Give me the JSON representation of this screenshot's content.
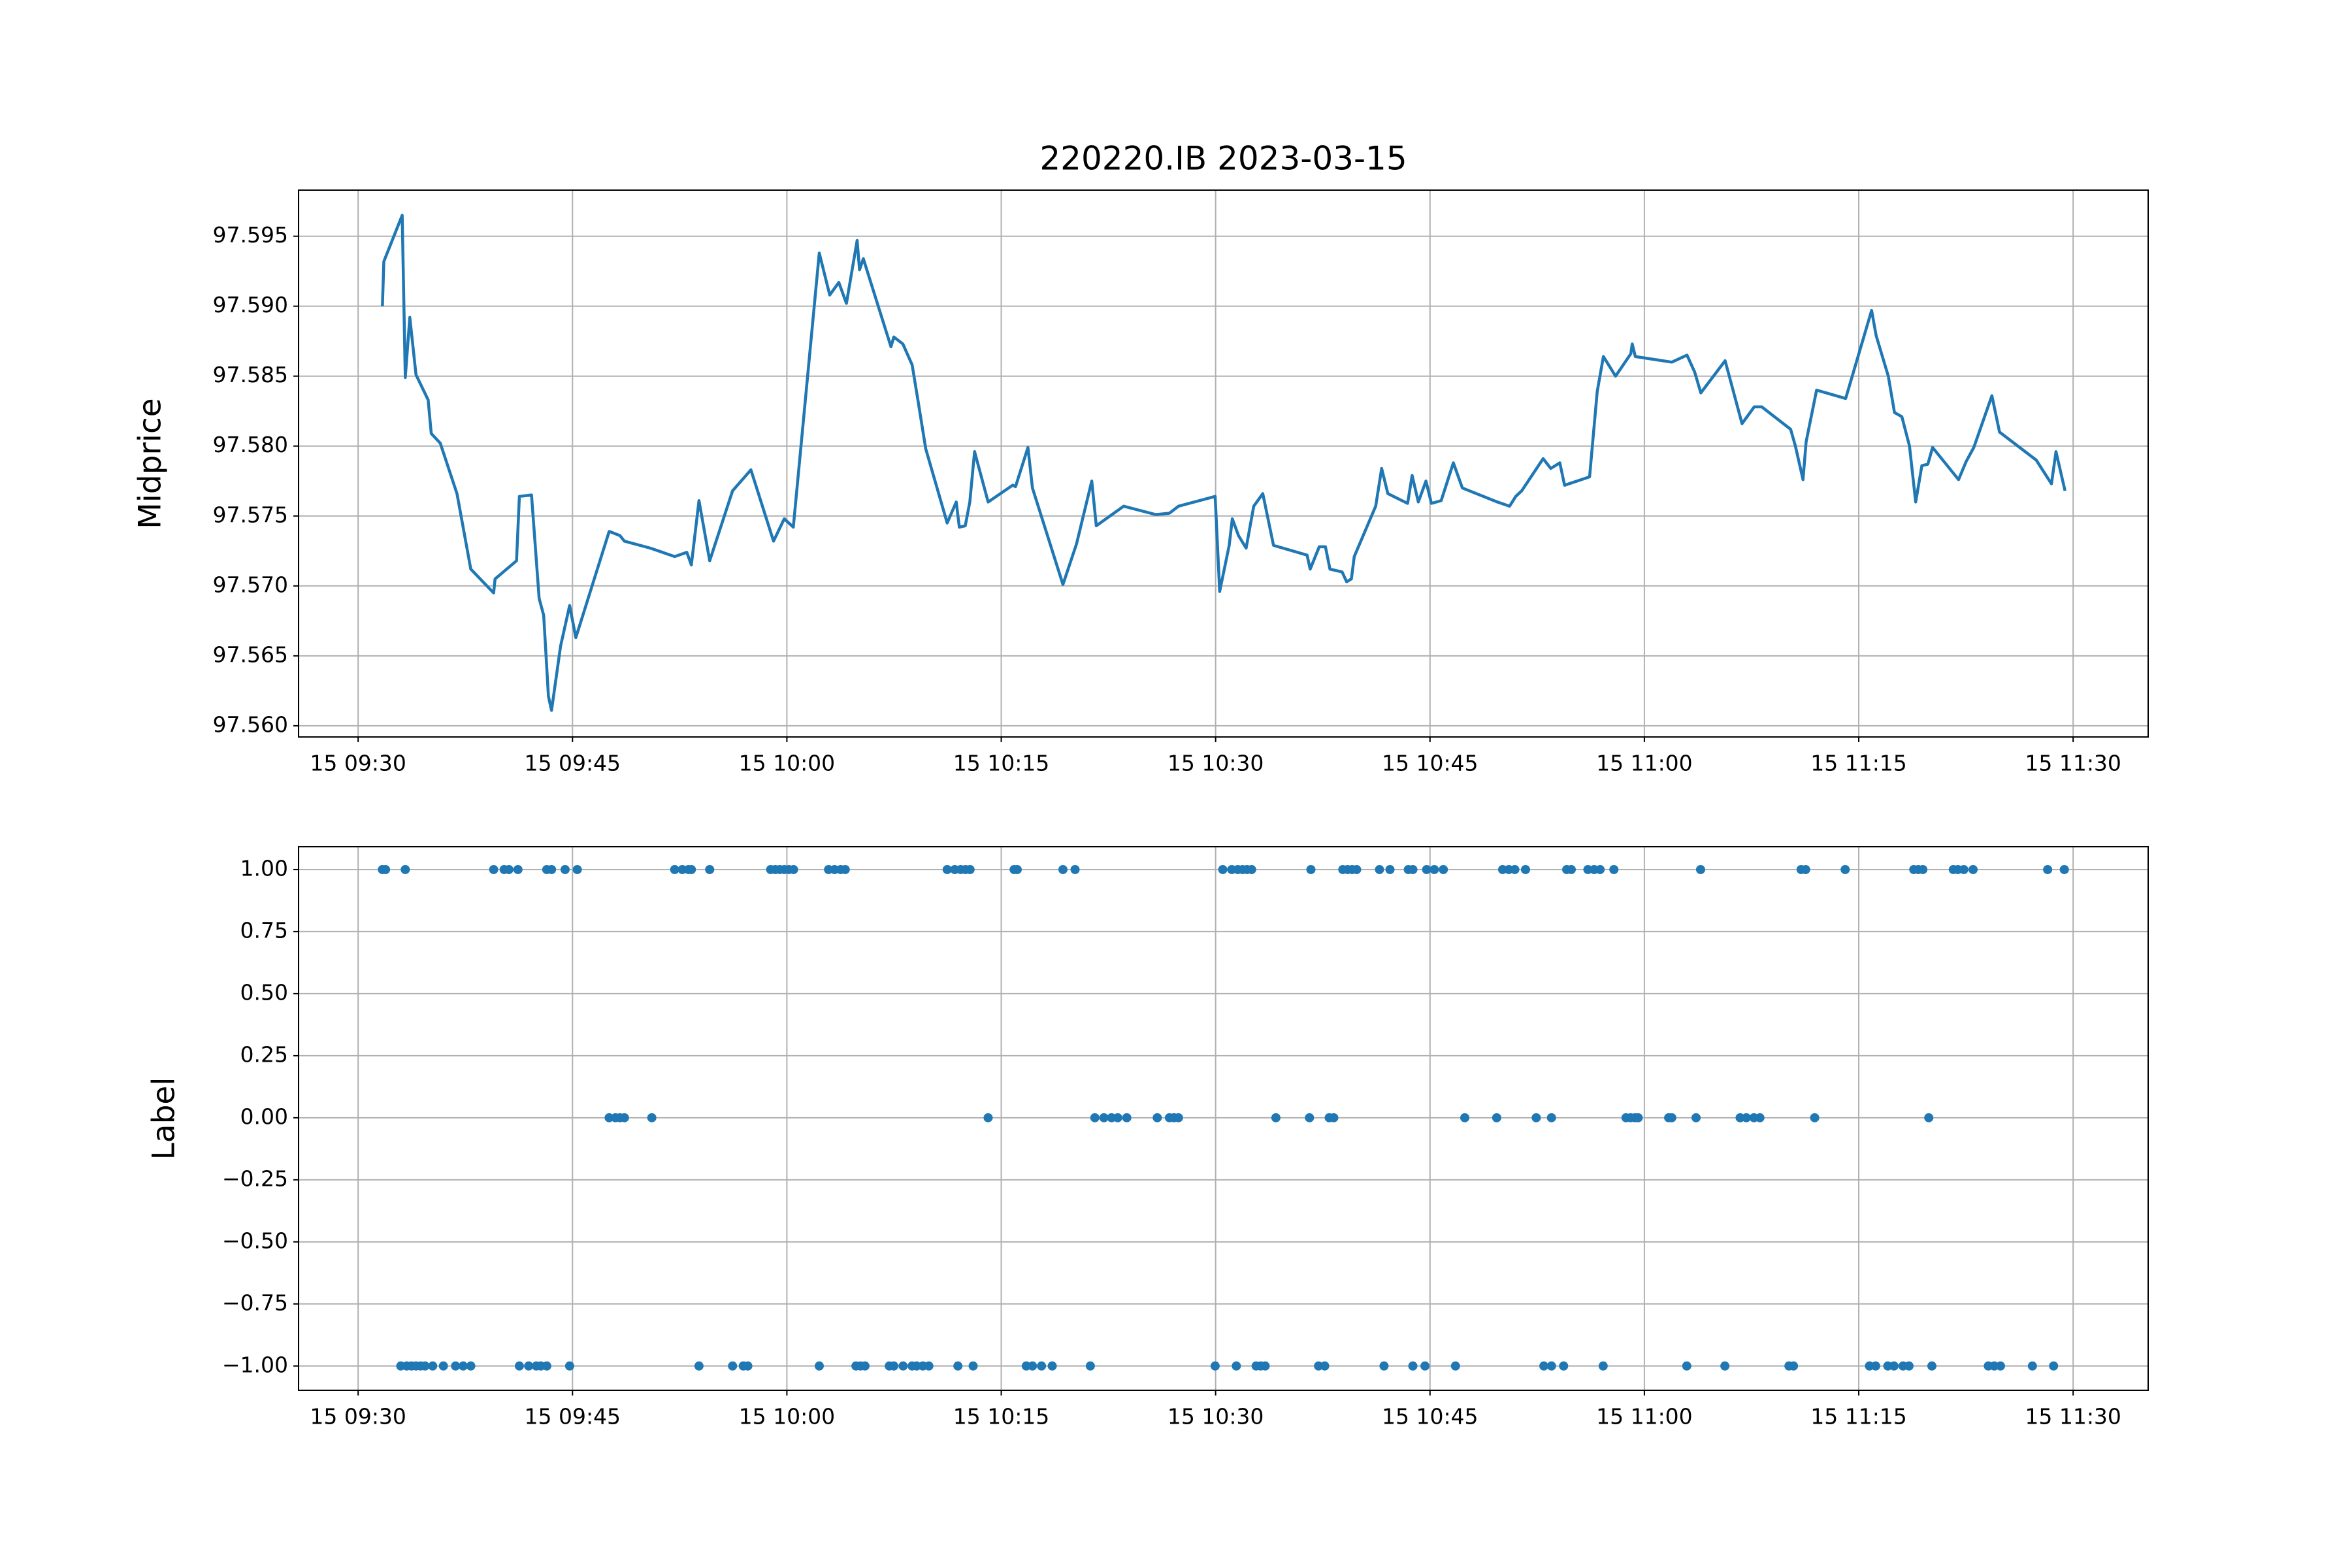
{
  "chart_data": [
    {
      "type": "line",
      "title": "220220.IB 2023-03-15",
      "ylabel": "Midprice",
      "color": "#1f77b4",
      "grid": true,
      "x": [
        "15 09:31:42",
        "15 09:31:48",
        "15 09:33:05",
        "15 09:33:18",
        "15 09:33:37",
        "15 09:34:03",
        "15 09:34:54",
        "15 09:35:07",
        "15 09:35:45",
        "15 09:36:55",
        "15 09:37:53",
        "15 09:39:29",
        "15 09:39:35",
        "15 09:41:05",
        "15 09:41:17",
        "15 09:42:08",
        "15 09:42:40",
        "15 09:42:59",
        "15 09:43:19",
        "15 09:43:32",
        "15 09:44:10",
        "15 09:44:48",
        "15 09:45:14",
        "15 09:47:34",
        "15 09:48:19",
        "15 09:48:38",
        "15 09:50:27",
        "15 09:52:09",
        "15 09:53:00",
        "15 09:53:19",
        "15 09:53:51",
        "15 09:54:36",
        "15 09:56:12",
        "15 09:57:29",
        "15 09:59:04",
        "15 09:59:49",
        "15 10:00:27",
        "15 10:02:16",
        "15 10:03:00",
        "15 10:03:38",
        "15 10:04:10",
        "15 10:04:55",
        "15 10:05:05",
        "15 10:05:21",
        "15 10:07:17",
        "15 10:07:29",
        "15 10:08:07",
        "15 10:08:46",
        "15 10:09:11",
        "15 10:09:43",
        "15 10:11:13",
        "15 10:11:51",
        "15 10:12:04",
        "15 10:12:29",
        "15 10:12:48",
        "15 10:13:08",
        "15 10:14:05",
        "15 10:15:48",
        "15 10:16:00",
        "15 10:16:52",
        "15 10:17:11",
        "15 10:19:19",
        "15 10:20:16",
        "15 10:21:20",
        "15 10:21:39",
        "15 10:23:34",
        "15 10:25:49",
        "15 10:26:46",
        "15 10:27:24",
        "15 10:29:58",
        "15 10:30:17",
        "15 10:30:57",
        "15 10:31:10",
        "15 10:31:36",
        "15 10:32:08",
        "15 10:32:40",
        "15 10:33:18",
        "15 10:34:03",
        "15 10:36:24",
        "15 10:36:37",
        "15 10:37:15",
        "15 10:37:41",
        "15 10:38:00",
        "15 10:38:51",
        "15 10:39:10",
        "15 10:39:30",
        "15 10:39:42",
        "15 10:41:12",
        "15 10:41:37",
        "15 10:42:03",
        "15 10:43:26",
        "15 10:43:45",
        "15 10:44:11",
        "15 10:44:43",
        "15 10:45:06",
        "15 10:45:47",
        "15 10:46:38",
        "15 10:47:16",
        "15 10:49:43",
        "15 10:50:34",
        "15 10:51:00",
        "15 10:51:25",
        "15 10:52:55",
        "15 10:53:27",
        "15 10:54:05",
        "15 10:54:25",
        "15 10:56:10",
        "15 10:56:42",
        "15 10:57:08",
        "15 10:57:59",
        "15 10:59:03",
        "15 10:59:09",
        "15 10:59:22",
        "15 11:01:55",
        "15 11:02:59",
        "15 11:03:31",
        "15 11:03:57",
        "15 11:05:39",
        "15 11:06:50",
        "15 11:07:41",
        "15 11:08:13",
        "15 11:10:14",
        "15 11:10:34",
        "15 11:11:06",
        "15 11:11:19",
        "15 11:12:03",
        "15 11:14:05",
        "15 11:15:54",
        "15 11:16:13",
        "15 11:17:04",
        "15 11:17:30",
        "15 11:18:01",
        "15 11:18:33",
        "15 11:18:59",
        "15 11:19:25",
        "15 11:19:50",
        "15 11:20:10",
        "15 11:21:59",
        "15 11:22:31",
        "15 11:23:03",
        "15 11:24:19",
        "15 11:24:51",
        "15 11:27:25",
        "15 11:28:29",
        "15 11:28:48",
        "15 11:29:26"
      ],
      "values": [
        97.59,
        97.5932,
        97.5965,
        97.5849,
        97.5892,
        97.5851,
        97.5833,
        97.5809,
        97.5802,
        97.5766,
        97.5712,
        97.5695,
        97.5705,
        97.5718,
        97.5764,
        97.5765,
        97.5691,
        97.5679,
        97.5621,
        97.5611,
        97.5657,
        97.5686,
        97.5663,
        97.5739,
        97.5736,
        97.5732,
        97.5727,
        97.5721,
        97.5724,
        97.5715,
        97.5761,
        97.5718,
        97.5768,
        97.5783,
        97.5732,
        97.5748,
        97.5742,
        97.5938,
        97.5908,
        97.5917,
        97.5902,
        97.5947,
        97.5926,
        97.5934,
        97.5871,
        97.5878,
        97.5873,
        97.5858,
        97.5832,
        97.5798,
        97.5745,
        97.576,
        97.5742,
        97.5743,
        97.576,
        97.5796,
        97.576,
        97.5772,
        97.5771,
        97.5799,
        97.577,
        97.5701,
        97.573,
        97.5775,
        97.5743,
        97.5757,
        97.5751,
        97.5752,
        97.5757,
        97.5764,
        97.5696,
        97.5729,
        97.5748,
        97.5736,
        97.5727,
        97.5757,
        97.5766,
        97.5729,
        97.5722,
        97.5712,
        97.5728,
        97.5728,
        97.5712,
        97.571,
        97.5703,
        97.5705,
        97.5721,
        97.5757,
        97.5784,
        97.5766,
        97.5759,
        97.5779,
        97.576,
        97.5775,
        97.5759,
        97.5761,
        97.5788,
        97.577,
        97.576,
        97.5757,
        97.5764,
        97.5768,
        97.5791,
        97.5784,
        97.5788,
        97.5772,
        97.5778,
        97.5839,
        97.5864,
        97.585,
        97.5866,
        97.5873,
        97.5864,
        97.586,
        97.5865,
        97.5853,
        97.5838,
        97.5861,
        97.5816,
        97.5828,
        97.5828,
        97.5812,
        97.58,
        97.5776,
        97.5803,
        97.584,
        97.5834,
        97.5897,
        97.5879,
        97.585,
        97.5824,
        97.5821,
        97.58,
        97.576,
        97.5786,
        97.5787,
        97.5799,
        97.5776,
        97.5789,
        97.5799,
        97.5836,
        97.581,
        97.579,
        97.5773,
        97.5796,
        97.5768
      ],
      "xlim": [
        "15 09:25:50",
        "15 11:35:15"
      ],
      "xticks": [
        "15 09:30",
        "15 09:45",
        "15 10:00",
        "15 10:15",
        "15 10:30",
        "15 10:45",
        "15 11:00",
        "15 11:15",
        "15 11:30"
      ],
      "ylim": [
        97.5592,
        97.5983
      ],
      "yticks": [
        {
          "value": 97.56,
          "label": "97.560"
        },
        97.565,
        {
          "value": 97.57,
          "label": "97.570"
        },
        97.575,
        {
          "value": 97.58,
          "label": "97.580"
        },
        97.585,
        {
          "value": 97.59,
          "label": "97.590"
        },
        97.595
      ]
    },
    {
      "type": "scatter",
      "ylabel": "Label",
      "color": "#1f77b4",
      "grid": true,
      "x": [
        "15 09:31:42",
        "15 09:31:55",
        "15 09:33:18",
        "15 09:39:29",
        "15 09:40:13",
        "15 09:40:33",
        "15 09:41:11",
        "15 09:43:12",
        "15 09:43:32",
        "15 09:44:29",
        "15 09:45:20",
        "15 09:52:09",
        "15 09:52:41",
        "15 09:53:07",
        "15 09:53:19",
        "15 09:54:36",
        "15 09:58:52",
        "15 09:59:11",
        "15 09:59:30",
        "15 09:59:49",
        "15 10:00:08",
        "15 10:00:28",
        "15 10:02:55",
        "15 10:03:20",
        "15 10:03:46",
        "15 10:04:05",
        "15 10:11:13",
        "15 10:11:45",
        "15 10:12:10",
        "15 10:12:30",
        "15 10:12:49",
        "15 10:15:54",
        "15 10:16:07",
        "15 10:19:19",
        "15 10:20:10",
        "15 10:30:30",
        "15 10:31:08",
        "15 10:31:33",
        "15 10:31:53",
        "15 10:32:12",
        "15 10:32:31",
        "15 10:36:40",
        "15 10:38:54",
        "15 10:39:14",
        "15 10:39:33",
        "15 10:39:52",
        "15 10:41:28",
        "15 10:42:12",
        "15 10:43:29",
        "15 10:43:48",
        "15 10:44:46",
        "15 10:45:18",
        "15 10:45:56",
        "15 10:50:05",
        "15 10:50:31",
        "15 10:50:56",
        "15 10:51:41",
        "15 10:54:34",
        "15 10:54:53",
        "15 10:56:03",
        "15 10:56:29",
        "15 10:56:54",
        "15 10:57:52",
        "15 11:03:56",
        "15 11:10:58",
        "15 11:11:17",
        "15 11:14:03",
        "15 11:18:51",
        "15 11:19:10",
        "15 11:19:29",
        "15 11:21:37",
        "15 11:21:56",
        "15 11:22:21",
        "15 11:23:00",
        "15 11:28:13",
        "15 11:29:23",
        "15 09:47:34",
        "15 09:48:00",
        "15 09:48:19",
        "15 09:48:38",
        "15 09:50:33",
        "15 10:14:05",
        "15 10:21:33",
        "15 10:22:11",
        "15 10:22:43",
        "15 10:23:09",
        "15 10:23:47",
        "15 10:25:55",
        "15 10:26:46",
        "15 10:27:05",
        "15 10:27:24",
        "15 10:34:13",
        "15 10:36:34",
        "15 10:37:57",
        "15 10:38:16",
        "15 10:47:26",
        "15 10:49:40",
        "15 10:52:26",
        "15 10:53:30",
        "15 10:58:43",
        "15 10:59:02",
        "15 10:59:21",
        "15 10:59:34",
        "15 11:01:42",
        "15 11:01:55",
        "15 11:03:37",
        "15 11:06:42",
        "15 11:07:08",
        "15 11:07:40",
        "15 11:08:05",
        "15 11:11:55",
        "15 11:19:54",
        "15 09:32:59",
        "15 09:33:24",
        "15 09:33:44",
        "15 09:34:03",
        "15 09:34:22",
        "15 09:34:41",
        "15 09:35:13",
        "15 09:35:58",
        "15 09:36:49",
        "15 09:37:21",
        "15 09:37:53",
        "15 09:41:17",
        "15 09:41:56",
        "15 09:42:28",
        "15 09:42:47",
        "15 09:43:12",
        "15 09:44:48",
        "15 09:53:51",
        "15 09:56:12",
        "15 09:56:57",
        "15 09:57:16",
        "15 10:02:16",
        "15 10:04:50",
        "15 10:05:09",
        "15 10:05:28",
        "15 10:07:10",
        "15 10:07:29",
        "15 10:08:08",
        "15 10:08:46",
        "15 10:09:05",
        "15 10:09:31",
        "15 10:09:56",
        "15 10:11:58",
        "15 10:13:02",
        "15 10:16:45",
        "15 10:17:11",
        "15 10:17:49",
        "15 10:18:34",
        "15 10:21:14",
        "15 10:29:58",
        "15 10:31:27",
        "15 10:32:50",
        "15 10:33:09",
        "15 10:33:28",
        "15 10:37:12",
        "15 10:37:38",
        "15 10:41:47",
        "15 10:43:48",
        "15 10:44:39",
        "15 10:46:47",
        "15 10:52:58",
        "15 10:53:30",
        "15 10:54:21",
        "15 10:57:07",
        "15 11:02:58",
        "15 11:05:38",
        "15 11:10:07",
        "15 11:10:26",
        "15 11:15:45",
        "15 11:16:11",
        "15 11:17:02",
        "15 11:17:28",
        "15 11:18:06",
        "15 11:18:31",
        "15 11:20:07",
        "15 11:24:04",
        "15 11:24:29",
        "15 11:24:55",
        "15 11:27:09",
        "15 11:28:38"
      ],
      "values": [
        1,
        1,
        1,
        1,
        1,
        1,
        1,
        1,
        1,
        1,
        1,
        1,
        1,
        1,
        1,
        1,
        1,
        1,
        1,
        1,
        1,
        1,
        1,
        1,
        1,
        1,
        1,
        1,
        1,
        1,
        1,
        1,
        1,
        1,
        1,
        1,
        1,
        1,
        1,
        1,
        1,
        1,
        1,
        1,
        1,
        1,
        1,
        1,
        1,
        1,
        1,
        1,
        1,
        1,
        1,
        1,
        1,
        1,
        1,
        1,
        1,
        1,
        1,
        1,
        1,
        1,
        1,
        1,
        1,
        1,
        1,
        1,
        1,
        1,
        1,
        1,
        0,
        0,
        0,
        0,
        0,
        0,
        0,
        0,
        0,
        0,
        0,
        0,
        0,
        0,
        0,
        0,
        0,
        0,
        0,
        0,
        0,
        0,
        0,
        0,
        0,
        0,
        0,
        0,
        0,
        0,
        0,
        0,
        0,
        0,
        0,
        0,
        -1,
        -1,
        -1,
        -1,
        -1,
        -1,
        -1,
        -1,
        -1,
        -1,
        -1,
        -1,
        -1,
        -1,
        -1,
        -1,
        -1,
        -1,
        -1,
        -1,
        -1,
        -1,
        -1,
        -1,
        -1,
        -1,
        -1,
        -1,
        -1,
        -1,
        -1,
        -1,
        -1,
        -1,
        -1,
        -1,
        -1,
        -1,
        -1,
        -1,
        -1,
        -1,
        -1,
        -1,
        -1,
        -1,
        -1,
        -1,
        -1,
        -1,
        -1,
        -1,
        -1,
        -1,
        -1,
        -1,
        -1,
        -1,
        -1,
        -1,
        -1,
        -1,
        -1,
        -1,
        -1,
        -1,
        -1,
        -1,
        -1,
        -1
      ],
      "xlim": [
        "15 09:25:50",
        "15 11:35:15"
      ],
      "xticks": [
        "15 09:30",
        "15 09:45",
        "15 10:00",
        "15 10:15",
        "15 10:30",
        "15 10:45",
        "15 11:00",
        "15 11:15",
        "15 11:30"
      ],
      "ylim": [
        -1.098,
        1.092
      ],
      "yticks": [
        {
          "value": -1,
          "label": "−1.00"
        },
        {
          "value": -0.75,
          "label": "−0.75"
        },
        {
          "value": -0.5,
          "label": "−0.50"
        },
        {
          "value": -0.25,
          "label": "−0.25"
        },
        {
          "value": 0,
          "label": "0.00"
        },
        {
          "value": 0.25,
          "label": "0.25"
        },
        {
          "value": 0.5,
          "label": "0.50"
        },
        {
          "value": 0.75,
          "label": "0.75"
        },
        {
          "value": 1,
          "label": "1.00"
        }
      ]
    }
  ]
}
